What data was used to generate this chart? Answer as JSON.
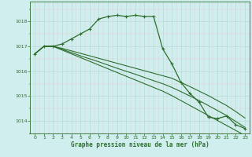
{
  "xlabel": "Graphe pression niveau de la mer (hPa)",
  "bg_color": "#d0eeee",
  "line_color": "#2d6e2d",
  "ylim": [
    1013.5,
    1018.8
  ],
  "xlim": [
    -0.5,
    23.5
  ],
  "yticks": [
    1014,
    1015,
    1016,
    1017,
    1018
  ],
  "xticks": [
    0,
    1,
    2,
    3,
    4,
    5,
    6,
    7,
    8,
    9,
    10,
    11,
    12,
    13,
    14,
    15,
    16,
    17,
    18,
    19,
    20,
    21,
    22,
    23
  ],
  "major_grid_color": "#b8d8d8",
  "minor_grid_color": "#e8c8c8",
  "series": [
    {
      "x": [
        0,
        1,
        2,
        3,
        4,
        5,
        6,
        7,
        8,
        9,
        10,
        11,
        12,
        13,
        14,
        15,
        16,
        17,
        18,
        19,
        20,
        21,
        22,
        23
      ],
      "y": [
        1016.7,
        1017.0,
        1017.0,
        1017.1,
        1017.3,
        1017.5,
        1017.7,
        1018.1,
        1018.2,
        1018.25,
        1018.2,
        1018.25,
        1018.2,
        1018.2,
        1016.9,
        1016.3,
        1015.55,
        1015.1,
        1014.75,
        1014.15,
        1014.1,
        1014.2,
        1013.85,
        1013.7
      ],
      "marker": true,
      "linewidth": 0.9
    },
    {
      "x": [
        0,
        1,
        2,
        3,
        4,
        5,
        6,
        7,
        8,
        9,
        10,
        11,
        12,
        13,
        14,
        15,
        16,
        17,
        18,
        19,
        20,
        21,
        22,
        23
      ],
      "y": [
        1016.7,
        1017.0,
        1017.0,
        1016.92,
        1016.82,
        1016.72,
        1016.62,
        1016.52,
        1016.42,
        1016.32,
        1016.22,
        1016.12,
        1016.02,
        1015.92,
        1015.82,
        1015.72,
        1015.55,
        1015.38,
        1015.2,
        1015.02,
        1014.82,
        1014.62,
        1014.38,
        1014.12
      ],
      "marker": false,
      "linewidth": 0.8
    },
    {
      "x": [
        0,
        1,
        2,
        3,
        4,
        5,
        6,
        7,
        8,
        9,
        10,
        11,
        12,
        13,
        14,
        15,
        16,
        17,
        18,
        19,
        20,
        21,
        22,
        23
      ],
      "y": [
        1016.7,
        1017.0,
        1017.0,
        1016.88,
        1016.75,
        1016.62,
        1016.5,
        1016.38,
        1016.25,
        1016.12,
        1016.0,
        1015.88,
        1015.75,
        1015.62,
        1015.5,
        1015.35,
        1015.18,
        1015.0,
        1014.82,
        1014.62,
        1014.42,
        1014.22,
        1013.98,
        1013.75
      ],
      "marker": false,
      "linewidth": 0.8
    },
    {
      "x": [
        0,
        1,
        2,
        3,
        4,
        5,
        6,
        7,
        8,
        9,
        10,
        11,
        12,
        13,
        14,
        15,
        16,
        17,
        18,
        19,
        20,
        21,
        22,
        23
      ],
      "y": [
        1016.7,
        1017.0,
        1017.0,
        1016.85,
        1016.7,
        1016.55,
        1016.4,
        1016.25,
        1016.1,
        1015.95,
        1015.8,
        1015.65,
        1015.5,
        1015.35,
        1015.2,
        1015.02,
        1014.82,
        1014.62,
        1014.42,
        1014.22,
        1014.02,
        1013.82,
        1013.62,
        1013.42
      ],
      "marker": false,
      "linewidth": 0.8
    }
  ]
}
